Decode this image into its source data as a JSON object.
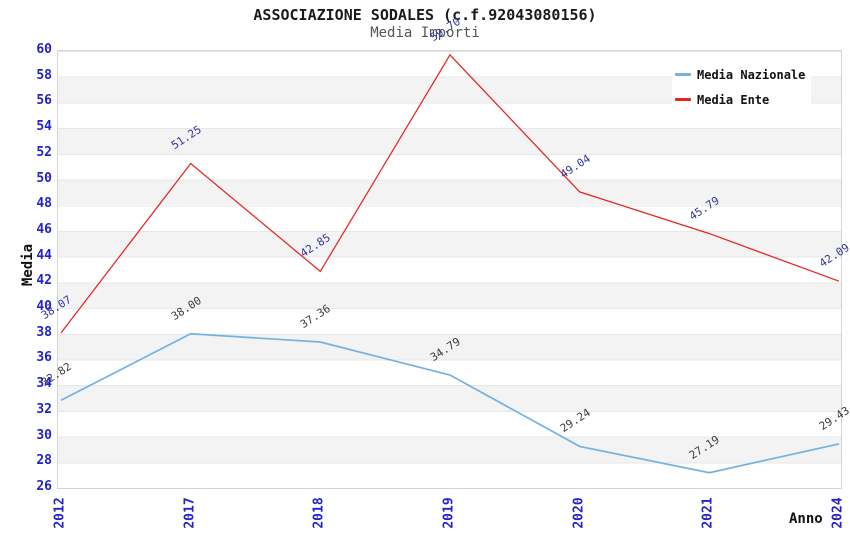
{
  "title": "ASSOCIAZIONE SODALES (c.f.92043080156)",
  "subtitle": "Media Importi",
  "chart_data": {
    "type": "line",
    "title": "ASSOCIAZIONE SODALES (c.f.92043080156)",
    "subtitle": "Media Importi",
    "x": [
      "2012",
      "2017",
      "2018",
      "2019",
      "2020",
      "2021",
      "2024"
    ],
    "series": [
      {
        "name": "Media Nazionale",
        "color": "#74b2e2",
        "label_color": "#3a3a40",
        "values": [
          32.82,
          38.0,
          37.36,
          34.79,
          29.24,
          27.19,
          29.43
        ]
      },
      {
        "name": "Media Ente",
        "color": "#e62424",
        "label_color": "#3333a0",
        "values": [
          38.07,
          51.25,
          42.85,
          59.7,
          49.04,
          45.79,
          42.09
        ]
      }
    ],
    "xlabel": "Anno",
    "ylabel": "Media",
    "ylim": [
      26,
      60
    ],
    "ytick_labels": [
      26,
      28,
      30,
      32,
      34,
      36,
      38,
      40,
      42,
      44,
      46,
      48,
      50,
      52,
      54,
      56,
      58,
      60
    ],
    "axis_tick_color": "#2222cc",
    "grid": "banded",
    "legend_position": "top-right",
    "legend_entries": [
      "Media Nazionale",
      "Media Ente"
    ]
  }
}
